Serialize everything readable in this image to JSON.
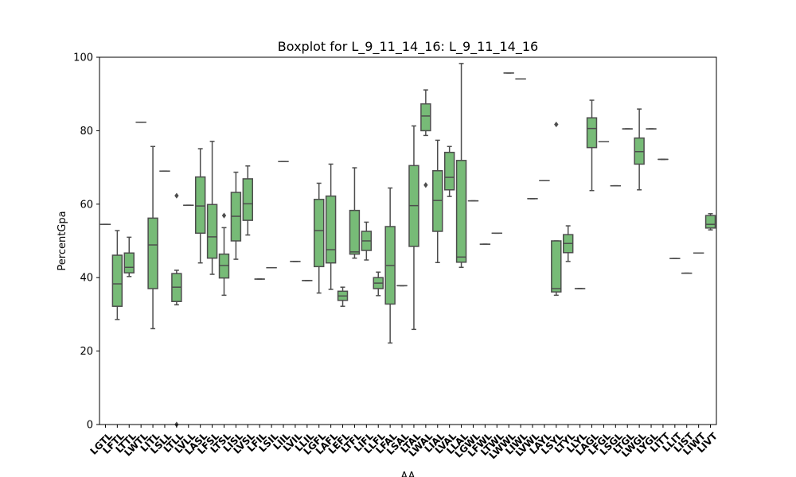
{
  "chart_data": {
    "type": "box",
    "title": "Boxplot for L_9_11_14_16: L_9_11_14_16",
    "xlabel": "AA",
    "ylabel": "PercentGpa",
    "ylim": [
      0,
      100
    ],
    "yticks": [
      0,
      20,
      40,
      60,
      80,
      100
    ],
    "grid": false,
    "legend": "none",
    "colors": {
      "box_fill": "#77bb77",
      "box_edge": "#4d4d4d",
      "axis": "#000000"
    },
    "categories": [
      "LGTL",
      "LFTL",
      "LTTL",
      "LWTL",
      "LITL",
      "LSLL",
      "LTLL",
      "LVLL",
      "LASL",
      "LFSL",
      "LTSL",
      "LISL",
      "LVSL",
      "LFIL",
      "LSIL",
      "LIIL",
      "LVIL",
      "LLIL",
      "LGFL",
      "LAFL",
      "LEFL",
      "LTFL",
      "LIFL",
      "LLFL",
      "LFAL",
      "LSAL",
      "LTAL",
      "LWAL",
      "LIAL",
      "LVAL",
      "LLAL",
      "LGWL",
      "LFWL",
      "LTWL",
      "LWWL",
      "LIWL",
      "LVWL",
      "LAYL",
      "LSYL",
      "LTYL",
      "LLYL",
      "LAGL",
      "LFGL",
      "LSGL",
      "LTGL",
      "LWGL",
      "LYGL",
      "LITT",
      "LLIT",
      "LIST",
      "LIWT",
      "LIVT"
    ],
    "boxes": [
      {
        "q1": 54.5,
        "median": 54.5,
        "q3": 54.5,
        "whislo": 54.5,
        "whishi": 54.5,
        "fliers": []
      },
      {
        "q1": 32.2,
        "median": 38.3,
        "q3": 46.1,
        "whislo": 28.6,
        "whishi": 52.8,
        "fliers": []
      },
      {
        "q1": 41.3,
        "median": 42.8,
        "q3": 46.7,
        "whislo": 40.3,
        "whishi": 51.0,
        "fliers": []
      },
      {
        "q1": 82.3,
        "median": 82.3,
        "q3": 82.3,
        "whislo": 82.3,
        "whishi": 82.3,
        "fliers": []
      },
      {
        "q1": 37.0,
        "median": 48.9,
        "q3": 56.2,
        "whislo": 26.1,
        "whishi": 75.7,
        "fliers": []
      },
      {
        "q1": 69.0,
        "median": 69.0,
        "q3": 69.0,
        "whislo": 69.0,
        "whishi": 69.0,
        "fliers": []
      },
      {
        "q1": 33.5,
        "median": 37.4,
        "q3": 41.1,
        "whislo": 32.6,
        "whishi": 42.0,
        "fliers": [
          62.3,
          0.0
        ]
      },
      {
        "q1": 59.7,
        "median": 59.7,
        "q3": 59.7,
        "whislo": 59.7,
        "whishi": 59.7,
        "fliers": []
      },
      {
        "q1": 52.1,
        "median": 59.5,
        "q3": 67.4,
        "whislo": 44.0,
        "whishi": 75.1,
        "fliers": []
      },
      {
        "q1": 45.3,
        "median": 51.1,
        "q3": 59.9,
        "whislo": 40.9,
        "whishi": 77.1,
        "fliers": []
      },
      {
        "q1": 39.9,
        "median": 43.3,
        "q3": 46.4,
        "whislo": 35.2,
        "whishi": 53.6,
        "fliers": [
          56.9
        ]
      },
      {
        "q1": 50.0,
        "median": 56.7,
        "q3": 63.2,
        "whislo": 45.0,
        "whishi": 68.7,
        "fliers": []
      },
      {
        "q1": 55.6,
        "median": 60.1,
        "q3": 66.9,
        "whislo": 51.6,
        "whishi": 70.4,
        "fliers": []
      },
      {
        "q1": 39.6,
        "median": 39.6,
        "q3": 39.6,
        "whislo": 39.6,
        "whishi": 39.6,
        "fliers": []
      },
      {
        "q1": 42.7,
        "median": 42.7,
        "q3": 42.7,
        "whislo": 42.7,
        "whishi": 42.7,
        "fliers": []
      },
      {
        "q1": 71.6,
        "median": 71.6,
        "q3": 71.6,
        "whislo": 71.6,
        "whishi": 71.6,
        "fliers": []
      },
      {
        "q1": 44.4,
        "median": 44.4,
        "q3": 44.4,
        "whislo": 44.4,
        "whishi": 44.4,
        "fliers": []
      },
      {
        "q1": 39.2,
        "median": 39.2,
        "q3": 39.2,
        "whislo": 39.2,
        "whishi": 39.2,
        "fliers": []
      },
      {
        "q1": 43.0,
        "median": 52.8,
        "q3": 61.3,
        "whislo": 35.8,
        "whishi": 65.7,
        "fliers": []
      },
      {
        "q1": 44.0,
        "median": 47.6,
        "q3": 62.2,
        "whislo": 36.8,
        "whishi": 70.9,
        "fliers": []
      },
      {
        "q1": 33.8,
        "median": 35.0,
        "q3": 36.3,
        "whislo": 32.2,
        "whishi": 37.4,
        "fliers": []
      },
      {
        "q1": 46.4,
        "median": 47.0,
        "q3": 58.3,
        "whislo": 45.3,
        "whishi": 69.9,
        "fliers": []
      },
      {
        "q1": 47.4,
        "median": 50.0,
        "q3": 52.6,
        "whislo": 44.8,
        "whishi": 55.1,
        "fliers": []
      },
      {
        "q1": 37.0,
        "median": 38.5,
        "q3": 40.0,
        "whislo": 35.1,
        "whishi": 41.5,
        "fliers": []
      },
      {
        "q1": 32.8,
        "median": 43.3,
        "q3": 53.9,
        "whislo": 22.2,
        "whishi": 64.4,
        "fliers": []
      },
      {
        "q1": 37.8,
        "median": 37.8,
        "q3": 37.8,
        "whislo": 37.8,
        "whishi": 37.8,
        "fliers": []
      },
      {
        "q1": 48.5,
        "median": 59.6,
        "q3": 70.5,
        "whislo": 25.9,
        "whishi": 81.3,
        "fliers": []
      },
      {
        "q1": 80.0,
        "median": 84.0,
        "q3": 87.3,
        "whislo": 78.7,
        "whishi": 91.1,
        "fliers": [
          65.2
        ]
      },
      {
        "q1": 52.6,
        "median": 61.0,
        "q3": 69.1,
        "whislo": 44.1,
        "whishi": 77.4,
        "fliers": []
      },
      {
        "q1": 63.9,
        "median": 67.3,
        "q3": 74.1,
        "whislo": 62.1,
        "whishi": 75.7,
        "fliers": []
      },
      {
        "q1": 44.2,
        "median": 45.6,
        "q3": 71.9,
        "whislo": 42.8,
        "whishi": 98.3,
        "fliers": []
      },
      {
        "q1": 60.9,
        "median": 60.9,
        "q3": 60.9,
        "whislo": 60.9,
        "whishi": 60.9,
        "fliers": []
      },
      {
        "q1": 49.1,
        "median": 49.1,
        "q3": 49.1,
        "whislo": 49.1,
        "whishi": 49.1,
        "fliers": []
      },
      {
        "q1": 52.1,
        "median": 52.1,
        "q3": 52.1,
        "whislo": 52.1,
        "whishi": 52.1,
        "fliers": []
      },
      {
        "q1": 95.7,
        "median": 95.7,
        "q3": 95.7,
        "whislo": 95.7,
        "whishi": 95.7,
        "fliers": []
      },
      {
        "q1": 94.1,
        "median": 94.1,
        "q3": 94.1,
        "whislo": 94.1,
        "whishi": 94.1,
        "fliers": []
      },
      {
        "q1": 61.5,
        "median": 61.5,
        "q3": 61.5,
        "whislo": 61.5,
        "whishi": 61.5,
        "fliers": []
      },
      {
        "q1": 66.4,
        "median": 66.4,
        "q3": 66.4,
        "whislo": 66.4,
        "whishi": 66.4,
        "fliers": []
      },
      {
        "q1": 36.1,
        "median": 37.0,
        "q3": 50.0,
        "whislo": 35.2,
        "whishi": 50.0,
        "fliers": [
          81.7
        ]
      },
      {
        "q1": 46.8,
        "median": 49.3,
        "q3": 51.7,
        "whislo": 44.4,
        "whishi": 54.1,
        "fliers": []
      },
      {
        "q1": 37.0,
        "median": 37.0,
        "q3": 37.0,
        "whislo": 37.0,
        "whishi": 37.0,
        "fliers": []
      },
      {
        "q1": 75.4,
        "median": 80.6,
        "q3": 83.5,
        "whislo": 63.7,
        "whishi": 88.3,
        "fliers": []
      },
      {
        "q1": 77.0,
        "median": 77.0,
        "q3": 77.0,
        "whislo": 77.0,
        "whishi": 77.0,
        "fliers": []
      },
      {
        "q1": 65.0,
        "median": 65.0,
        "q3": 65.0,
        "whislo": 65.0,
        "whishi": 65.0,
        "fliers": []
      },
      {
        "q1": 80.5,
        "median": 80.5,
        "q3": 80.5,
        "whislo": 80.5,
        "whishi": 80.5,
        "fliers": []
      },
      {
        "q1": 70.9,
        "median": 74.3,
        "q3": 78.0,
        "whislo": 63.9,
        "whishi": 85.9,
        "fliers": []
      },
      {
        "q1": 80.5,
        "median": 80.5,
        "q3": 80.5,
        "whislo": 80.5,
        "whishi": 80.5,
        "fliers": []
      },
      {
        "q1": 72.2,
        "median": 72.2,
        "q3": 72.2,
        "whislo": 72.2,
        "whishi": 72.2,
        "fliers": []
      },
      {
        "q1": 45.2,
        "median": 45.2,
        "q3": 45.2,
        "whislo": 45.2,
        "whishi": 45.2,
        "fliers": []
      },
      {
        "q1": 41.2,
        "median": 41.2,
        "q3": 41.2,
        "whislo": 41.2,
        "whishi": 41.2,
        "fliers": []
      },
      {
        "q1": 46.7,
        "median": 46.7,
        "q3": 46.7,
        "whislo": 46.7,
        "whishi": 46.7,
        "fliers": []
      },
      {
        "q1": 53.5,
        "median": 54.5,
        "q3": 56.9,
        "whislo": 53.0,
        "whishi": 57.4,
        "fliers": []
      }
    ]
  }
}
